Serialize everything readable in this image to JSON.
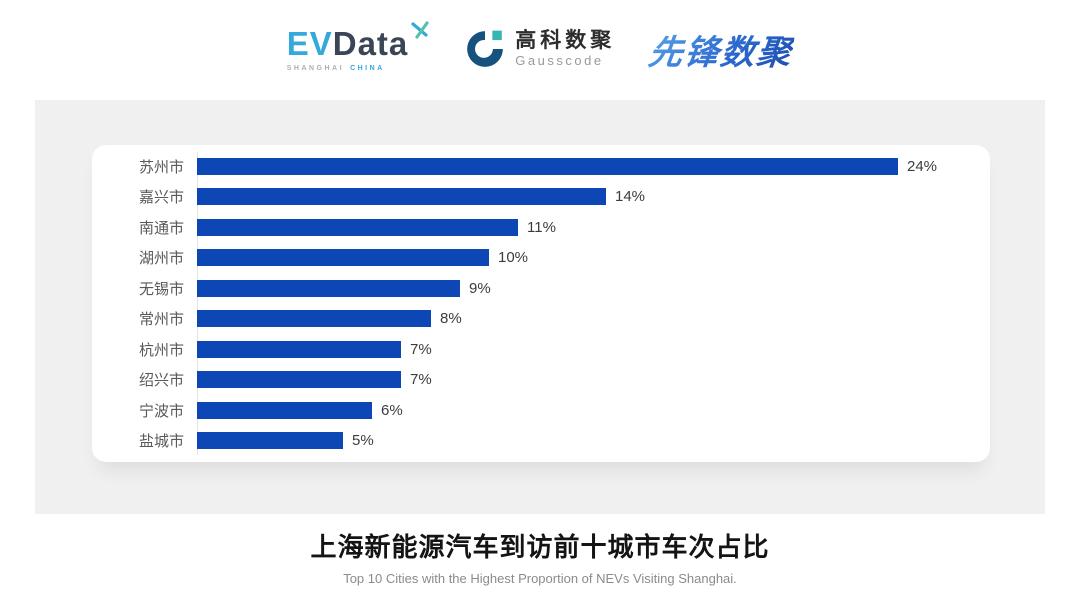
{
  "header": {
    "evdata": {
      "ev": "EV",
      "data": "Data",
      "tagline_left": "SHANGHAI",
      "tagline_right": "CHINA",
      "ev_color": "#35a8dc",
      "data_color": "#3a4656"
    },
    "gausscode": {
      "cn": "高科数聚",
      "en": "Gausscode",
      "mark_color": "#17527e",
      "accent_color": "#35b6b0"
    },
    "pioneer": {
      "text": "先锋数聚",
      "color": "#2e72cf"
    }
  },
  "chart_data": {
    "type": "bar",
    "orientation": "horizontal",
    "categories": [
      "苏州市",
      "嘉兴市",
      "南通市",
      "湖州市",
      "无锡市",
      "常州市",
      "杭州市",
      "绍兴市",
      "宁波市",
      "盐城市"
    ],
    "values": [
      24,
      14,
      11,
      10,
      9,
      8,
      7,
      7,
      6,
      5
    ],
    "value_labels": [
      "24%",
      "14%",
      "11%",
      "10%",
      "9%",
      "8%",
      "7%",
      "7%",
      "6%",
      "5%"
    ],
    "value_suffix": "%",
    "title": "上海新能源汽车到访前十城市车次占比",
    "subtitle": "Top 10 Cities with the Highest Proportion of  NEVs Visiting Shanghai.",
    "bar_color": "#0d47b5",
    "axis_line_color": "#e4e4e4",
    "xlim": [
      0,
      25
    ],
    "grid": false,
    "legend": false,
    "data_labels": true
  }
}
